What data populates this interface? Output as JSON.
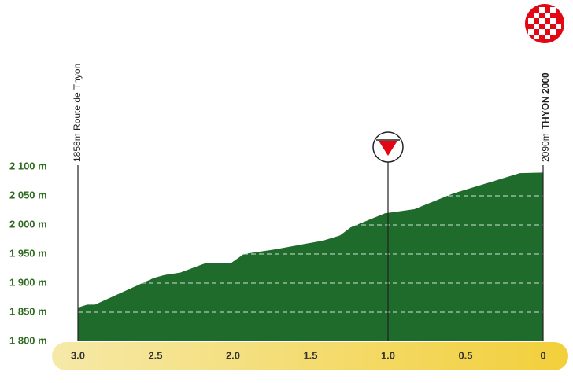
{
  "chart_data": {
    "type": "area",
    "start_label": "1858m Route de Thyon",
    "finish_elevation": "2090m",
    "finish_name": "THYON 2000",
    "flamme_rouge_km": 1,
    "x": [
      3.0,
      2.94,
      2.89,
      2.51,
      2.44,
      2.34,
      2.17,
      2.01,
      1.93,
      1.73,
      1.42,
      1.31,
      1.24,
      1.02,
      0.83,
      0.58,
      0.15,
      0
    ],
    "values": [
      1858,
      1863,
      1863,
      1909,
      1914,
      1918,
      1935,
      1935,
      1950,
      1958,
      1973,
      1982,
      1996,
      2020,
      2027,
      2054,
      2089,
      2090
    ],
    "color": "#1f6b2c",
    "xlim": [
      3,
      0
    ],
    "ylim": [
      1800,
      2100
    ],
    "xticks": [
      {
        "value": 3,
        "label": "3.0"
      },
      2.5,
      {
        "value": 2,
        "label": "2.0"
      },
      1.5,
      {
        "value": 1,
        "label": "1.0"
      },
      0.5,
      0
    ],
    "yticks": [
      {
        "value": 1800,
        "label": "1 800 m"
      },
      {
        "value": 1850,
        "label": "1 850 m"
      },
      {
        "value": 1900,
        "label": "1 900 m"
      },
      {
        "value": 1950,
        "label": "1 950 m"
      },
      {
        "value": 2000,
        "label": "2 000 m"
      },
      {
        "value": 2050,
        "label": "2 050 m"
      },
      {
        "value": 2100,
        "label": "2 100 m"
      }
    ],
    "grid": true
  }
}
